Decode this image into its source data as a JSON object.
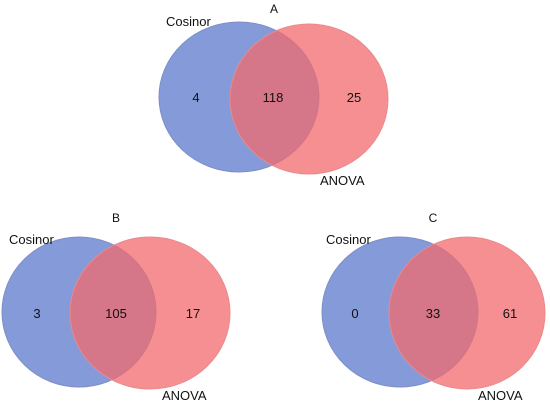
{
  "colors": {
    "set1": "#5b78cc",
    "set2": "#f26a6e",
    "stroke1": "#7d8fc6",
    "stroke2": "#e88a8d"
  },
  "panels": [
    {
      "letter": "A",
      "left_label": "Cosinor",
      "right_label": "ANOVA",
      "left_only": "4",
      "both": "118",
      "right_only": "25"
    },
    {
      "letter": "B",
      "left_label": "Cosinor",
      "right_label": "ANOVA",
      "left_only": "3",
      "both": "105",
      "right_only": "17"
    },
    {
      "letter": "C",
      "left_label": "Cosinor",
      "right_label": "ANOVA",
      "left_only": "0",
      "both": "33",
      "right_only": "61"
    }
  ]
}
